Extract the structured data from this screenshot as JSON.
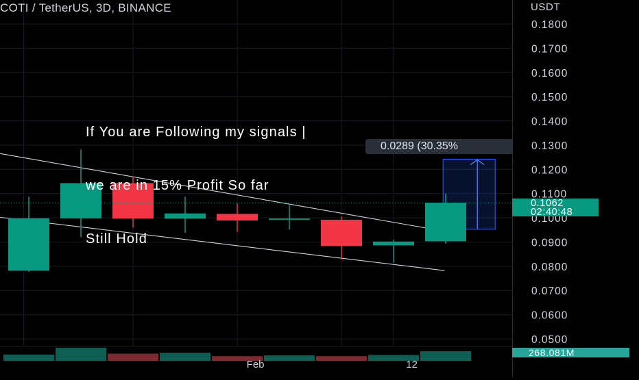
{
  "header": {
    "title": "COTI / TetherUS, 3D, BINANCE",
    "currency": "USDT"
  },
  "annotation": {
    "lines": [
      "If You are Following my signals |",
      "we are in 15% Profit So far",
      "Still Hold"
    ]
  },
  "range_measure": {
    "label": "0.0289 (30.35%"
  },
  "price_badge": {
    "price": "0.1062",
    "countdown": "02:40:48"
  },
  "volume_badge": {
    "value": "268.081M"
  },
  "colors": {
    "up": "#089981",
    "down": "#f23645",
    "background": "#000000",
    "grid": "#1b1d24",
    "trendline": "#d1d4dc",
    "measure": "#2962ff",
    "vol_up": "#0f5e54",
    "vol_down": "#7a2a30"
  },
  "chart_data": {
    "type": "candlestick",
    "symbol": "COTI / TetherUS",
    "interval": "3D",
    "exchange": "BINANCE",
    "y_axis": {
      "min": 0.05,
      "max": 0.18,
      "ticks": [
        "0.1800",
        "0.1700",
        "0.1600",
        "0.1500",
        "0.1400",
        "0.1300",
        "0.1200",
        "0.1100",
        "0.1000",
        "0.0900",
        "0.0800",
        "0.0700",
        "0.0600",
        "0.0500"
      ]
    },
    "x_axis": {
      "labels": [
        {
          "text": "Feb",
          "at": 4.35
        },
        {
          "text": "12",
          "at": 7.35
        }
      ]
    },
    "candles": [
      {
        "open": 0.0782,
        "high": 0.1088,
        "low": 0.0777,
        "close": 0.0998
      },
      {
        "open": 0.0998,
        "high": 0.1282,
        "low": 0.092,
        "close": 0.1143
      },
      {
        "open": 0.1143,
        "high": 0.117,
        "low": 0.096,
        "close": 0.0997
      },
      {
        "open": 0.0997,
        "high": 0.1087,
        "low": 0.0938,
        "close": 0.1018
      },
      {
        "open": 0.1016,
        "high": 0.106,
        "low": 0.0942,
        "close": 0.0989
      },
      {
        "open": 0.0992,
        "high": 0.1052,
        "low": 0.0952,
        "close": 0.0997
      },
      {
        "open": 0.0992,
        "high": 0.1005,
        "low": 0.0828,
        "close": 0.0884
      },
      {
        "open": 0.0886,
        "high": 0.091,
        "low": 0.0815,
        "close": 0.0902
      },
      {
        "open": 0.0903,
        "high": 0.11,
        "low": 0.0893,
        "close": 0.1062
      }
    ],
    "volume": [
      {
        "value": 0.48,
        "dir": "up"
      },
      {
        "value": 1.0,
        "dir": "up"
      },
      {
        "value": 0.55,
        "dir": "down"
      },
      {
        "value": 0.62,
        "dir": "up"
      },
      {
        "value": 0.36,
        "dir": "down"
      },
      {
        "value": 0.42,
        "dir": "up"
      },
      {
        "value": 0.36,
        "dir": "down"
      },
      {
        "value": 0.45,
        "dir": "up"
      },
      {
        "value": 0.74,
        "dir": "up"
      }
    ],
    "current_price": 0.1062,
    "trendlines": [
      {
        "x1": -0.55,
        "y1": 0.1265,
        "x2": 7.7,
        "y2": 0.0955
      },
      {
        "x1": -0.55,
        "y1": 0.1002,
        "x2": 7.98,
        "y2": 0.0782
      }
    ],
    "price_range": {
      "from_x": 7.95,
      "to_x": 8.95,
      "from_y": 0.0953,
      "to_y": 0.1242,
      "change": "0.0289",
      "percent": "30.35%"
    },
    "grid": true
  }
}
